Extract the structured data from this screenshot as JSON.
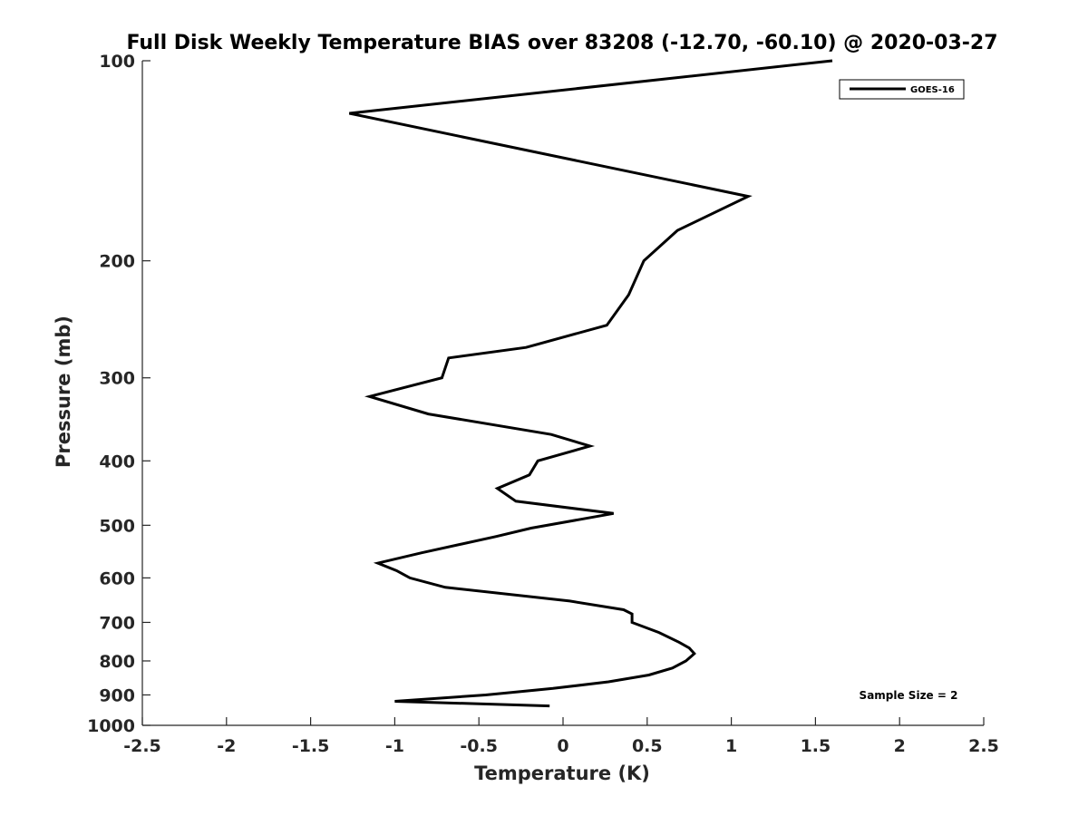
{
  "chart_data": {
    "type": "line",
    "title": "Full Disk Weekly Temperature BIAS over 83208 (-12.70, -60.10) @ 2020-03-27",
    "xlabel": "Temperature (K)",
    "ylabel": "Pressure (mb)",
    "xlim": [
      -2.5,
      2.5
    ],
    "ylim": [
      100,
      1000
    ],
    "y_scale": "log",
    "y_reversed": true,
    "x_ticks": [
      "-2.5",
      "-2",
      "-1.5",
      "-1",
      "-0.5",
      "0",
      "0.5",
      "1",
      "1.5",
      "2",
      "2.5"
    ],
    "x_tick_values": [
      -2.5,
      -2,
      -1.5,
      -1,
      -0.5,
      0,
      0.5,
      1,
      1.5,
      2,
      2.5
    ],
    "y_ticks": [
      "100",
      "200",
      "300",
      "400",
      "500",
      "600",
      "700",
      "800",
      "900",
      "1000"
    ],
    "y_tick_values": [
      100,
      200,
      300,
      400,
      500,
      600,
      700,
      800,
      900,
      1000
    ],
    "grid": false,
    "legend_position": "top-right",
    "line_color": "#000000",
    "series": [
      {
        "name": "GOES-16",
        "points": [
          [
            1.6,
            100
          ],
          [
            -1.27,
            120
          ],
          [
            1.1,
            160
          ],
          [
            0.68,
            180
          ],
          [
            0.48,
            200
          ],
          [
            0.39,
            225
          ],
          [
            0.26,
            250
          ],
          [
            -0.22,
            270
          ],
          [
            -0.68,
            280
          ],
          [
            -0.72,
            300
          ],
          [
            -1.15,
            320
          ],
          [
            -0.8,
            340
          ],
          [
            -0.07,
            365
          ],
          [
            0.16,
            380
          ],
          [
            -0.15,
            400
          ],
          [
            -0.2,
            420
          ],
          [
            -0.39,
            440
          ],
          [
            -0.28,
            460
          ],
          [
            0.3,
            480
          ],
          [
            -0.19,
            505
          ],
          [
            -0.4,
            520
          ],
          [
            -0.84,
            550
          ],
          [
            -1.1,
            570
          ],
          [
            -0.99,
            585
          ],
          [
            -0.91,
            600
          ],
          [
            -0.7,
            620
          ],
          [
            0.04,
            650
          ],
          [
            0.36,
            670
          ],
          [
            0.41,
            680
          ],
          [
            0.41,
            700
          ],
          [
            0.57,
            725
          ],
          [
            0.69,
            750
          ],
          [
            0.75,
            765
          ],
          [
            0.78,
            780
          ],
          [
            0.73,
            800
          ],
          [
            0.65,
            820
          ],
          [
            0.51,
            840
          ],
          [
            0.27,
            860
          ],
          [
            -0.06,
            880
          ],
          [
            -0.46,
            900
          ],
          [
            -1.0,
            920
          ],
          [
            -0.08,
            935
          ]
        ]
      }
    ],
    "annotation": "Sample Size = 2"
  }
}
